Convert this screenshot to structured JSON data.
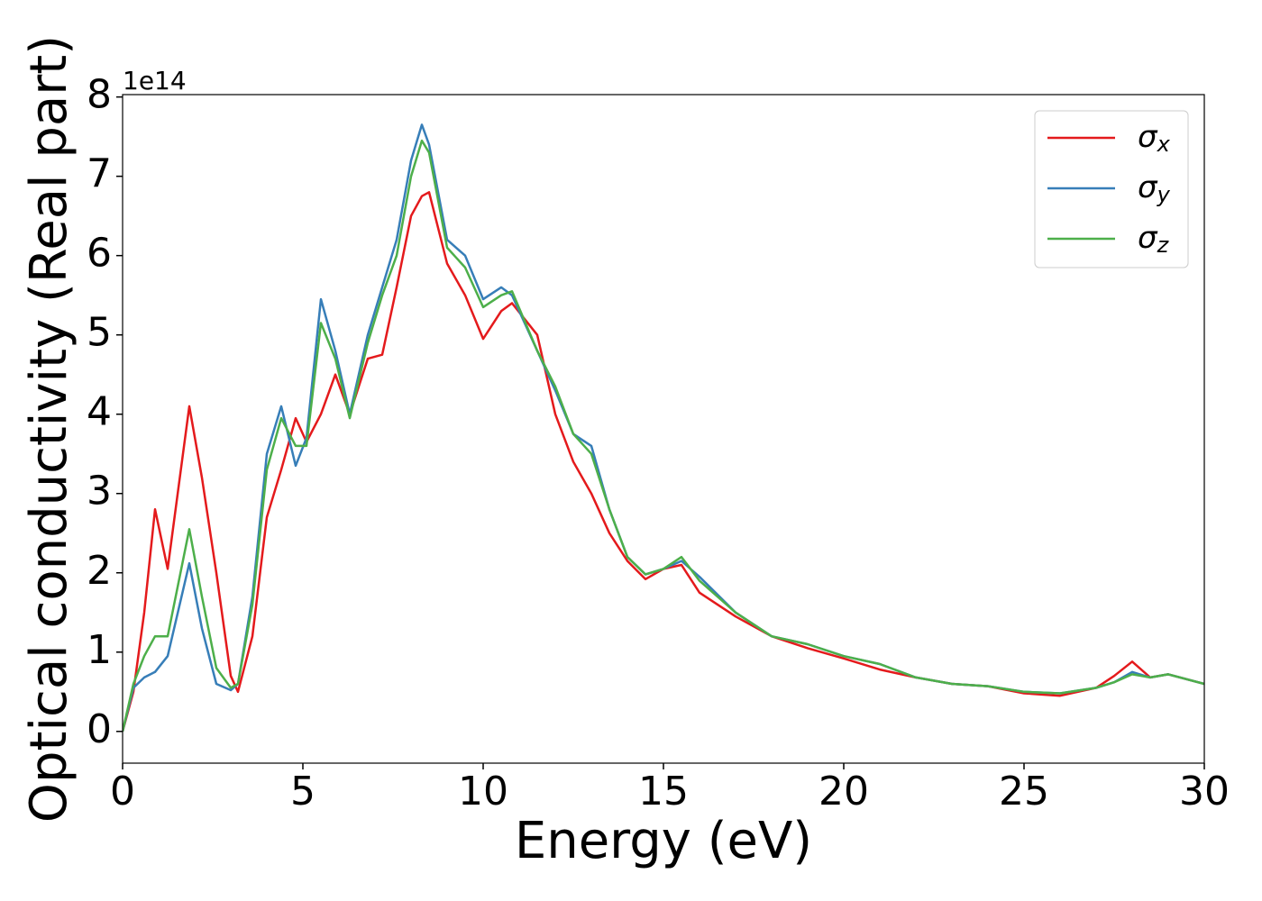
{
  "chart_data": {
    "type": "line",
    "xlabel": "Energy (eV)",
    "ylabel": "Optical conductivity (Real part)",
    "y_offset_label": "1e14",
    "xlim": [
      0,
      30
    ],
    "ylim": [
      -0.4,
      8.03
    ],
    "xticks": [
      0,
      5,
      10,
      15,
      20,
      25,
      30
    ],
    "yticks": [
      0,
      1,
      2,
      3,
      4,
      5,
      6,
      7,
      8
    ],
    "grid": false,
    "legend": "upper right",
    "x": [
      0,
      0.3,
      0.6,
      0.9,
      1.25,
      1.85,
      2.2,
      2.6,
      3.0,
      3.2,
      3.6,
      4.0,
      4.4,
      4.8,
      5.1,
      5.5,
      5.9,
      6.3,
      6.8,
      7.2,
      7.6,
      8.0,
      8.3,
      8.5,
      9.0,
      9.5,
      10.0,
      10.5,
      10.8,
      11.5,
      12.0,
      12.5,
      13.0,
      13.5,
      14.0,
      14.5,
      15.0,
      15.5,
      16.0,
      17.0,
      18.0,
      19.0,
      20.0,
      21.0,
      22.0,
      23.0,
      24.0,
      25.0,
      26.0,
      27.0,
      27.5,
      28.0,
      28.5,
      29.0,
      30.0
    ],
    "series": [
      {
        "name": "σx",
        "color": "#e41a1c",
        "values": [
          0,
          0.5,
          1.5,
          2.8,
          2.05,
          4.1,
          3.2,
          2.0,
          0.7,
          0.5,
          1.2,
          2.7,
          3.3,
          3.95,
          3.65,
          4.0,
          4.5,
          4.0,
          4.7,
          4.75,
          5.6,
          6.5,
          6.75,
          6.8,
          5.9,
          5.5,
          4.95,
          5.3,
          5.4,
          5.0,
          4.0,
          3.4,
          3.0,
          2.5,
          2.15,
          1.92,
          2.05,
          2.1,
          1.75,
          1.45,
          1.2,
          1.05,
          0.92,
          0.78,
          0.68,
          0.6,
          0.57,
          0.48,
          0.45,
          0.55,
          0.7,
          0.88,
          0.68,
          0.72,
          0.6
        ]
      },
      {
        "name": "σy",
        "color": "#377eb8",
        "values": [
          0,
          0.55,
          0.68,
          0.75,
          0.95,
          2.12,
          1.3,
          0.6,
          0.52,
          0.6,
          1.7,
          3.5,
          4.1,
          3.35,
          3.7,
          5.45,
          4.8,
          4.0,
          5.0,
          5.6,
          6.2,
          7.2,
          7.65,
          7.4,
          6.2,
          6.0,
          5.45,
          5.6,
          5.5,
          4.8,
          4.3,
          3.75,
          3.6,
          2.8,
          2.2,
          1.98,
          2.05,
          2.15,
          1.95,
          1.5,
          1.2,
          1.1,
          0.95,
          0.85,
          0.68,
          0.6,
          0.57,
          0.5,
          0.48,
          0.55,
          0.62,
          0.75,
          0.68,
          0.72,
          0.6
        ]
      },
      {
        "name": "σz",
        "color": "#4daf4a",
        "values": [
          0,
          0.6,
          0.95,
          1.2,
          1.2,
          2.55,
          1.7,
          0.8,
          0.55,
          0.6,
          1.6,
          3.3,
          3.95,
          3.6,
          3.6,
          5.15,
          4.7,
          3.95,
          4.9,
          5.5,
          6.0,
          7.0,
          7.45,
          7.3,
          6.1,
          5.85,
          5.35,
          5.5,
          5.55,
          4.8,
          4.35,
          3.75,
          3.5,
          2.8,
          2.2,
          1.98,
          2.05,
          2.2,
          1.9,
          1.5,
          1.2,
          1.1,
          0.95,
          0.85,
          0.68,
          0.6,
          0.57,
          0.5,
          0.48,
          0.55,
          0.62,
          0.72,
          0.68,
          0.72,
          0.6
        ]
      }
    ]
  }
}
